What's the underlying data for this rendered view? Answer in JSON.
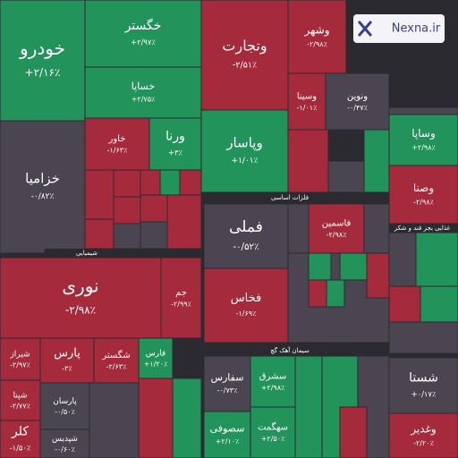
{
  "logo": "Nexna.ir",
  "sectors": [
    "شیمیایی",
    "فلزات اساسی",
    "سیمان آهک گچ",
    "غذایی بجز قند و شکر"
  ],
  "chart_data": {
    "type": "treemap",
    "categories": [
      "خودرو",
      "خزامیا",
      "خگستر",
      "خساپا",
      "خاور",
      "ورنا",
      "نوری",
      "جم",
      "شیراز",
      "پارس",
      "شگستر",
      "فارس",
      "شپنا",
      "پارسان",
      "شپدیس",
      "وتجارت",
      "وپاسار",
      "فملی",
      "فخاس",
      "سفارس",
      "سصوفی",
      "سشرق",
      "سهگمت",
      "وشهر",
      "وسینا",
      "ونوین",
      "فاسمین",
      "وساپا",
      "وصنا",
      "شستا",
      "وغدیر",
      "کلر"
    ],
    "values": [
      2.16,
      -0.82,
      2.97,
      2.75,
      -1.63,
      3,
      -2.98,
      -2.99,
      -2.97,
      -3,
      -2.63,
      1.2,
      -2.77,
      -0.5,
      -0.6,
      -2.51,
      1.01,
      -0.52,
      -1.69,
      -0.73,
      2.1,
      2.98,
      2.5,
      -2.98,
      -1.01,
      -0.47,
      -2.98,
      2.98,
      -2.98,
      0.17,
      -2.2,
      -1.5
    ],
    "value_labels": [
      "+۲/۱۶٪",
      "-۰/۸۲٪",
      "+۲/۹۷٪",
      "+۲/۷۵٪",
      "-۱/۶۳٪",
      "+۳٪",
      "-۲/۹۸٪",
      "-۲/۹۹٪",
      "-۲/۹۷٪",
      "-۳٪",
      "-۲/۶۳٪",
      "+۱/۲۰٪",
      "-۲/۷۷٪",
      "-۰/۵۰٪",
      "-۰/۶۰٪",
      "-۲/۵۱٪",
      "+۱/۰۱٪",
      "-۰/۵۲٪",
      "-۱/۶۹٪",
      "-۰/۷۳٪",
      "+۲/۱۰٪",
      "+۲/۹۸٪",
      "+۲/۵۰٪",
      "-۲/۹۸٪",
      "-۱/۰۱٪",
      "-۰/۴۷٪",
      "-۲/۹۸٪",
      "+۲/۹۸٪",
      "-۲/۹۸٪",
      "+۰/۱۷٪",
      "-۲/۲۰٪",
      "-۱/۵۰٪"
    ]
  }
}
